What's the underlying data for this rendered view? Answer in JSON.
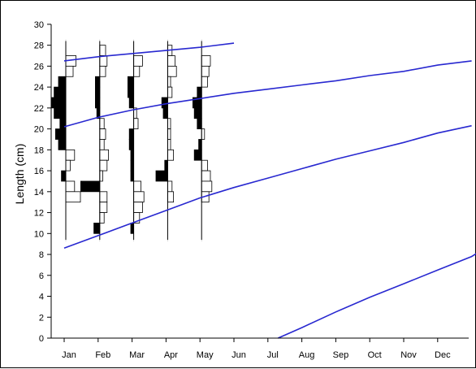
{
  "chart_data": {
    "type": "line",
    "subtype": "length-frequency with growth curves",
    "title": "",
    "xlabel": "",
    "ylabel": "Length (cm)",
    "ylim": [
      0,
      30
    ],
    "y_ticks": [
      0,
      2,
      4,
      6,
      8,
      10,
      12,
      14,
      16,
      18,
      20,
      22,
      24,
      26,
      28,
      30
    ],
    "x_categories": [
      "Jan",
      "Feb",
      "Mar",
      "Apr",
      "May",
      "Jun",
      "Jul",
      "Aug",
      "Sep",
      "Oct",
      "Nov",
      "Dec"
    ],
    "grid": false,
    "colors": {
      "growth_curve": "#2828d0",
      "positive_bar": "#000000",
      "negative_bar": "#ffffff",
      "sample_line": "#000000"
    },
    "growth_curves": [
      {
        "points": [
          [
            0,
            26.5
          ],
          [
            1,
            26.9
          ],
          [
            2,
            27.2
          ],
          [
            3,
            27.5
          ],
          [
            4,
            27.8
          ],
          [
            5,
            28.2
          ]
        ]
      },
      {
        "points": [
          [
            0,
            20.2
          ],
          [
            1,
            21.1
          ],
          [
            2,
            21.8
          ],
          [
            3,
            22.4
          ],
          [
            4,
            22.9
          ],
          [
            5,
            23.4
          ],
          [
            6,
            23.8
          ],
          [
            7,
            24.2
          ],
          [
            8,
            24.6
          ],
          [
            9,
            25.1
          ],
          [
            10,
            25.5
          ],
          [
            11,
            26.1
          ],
          [
            12,
            26.5
          ]
        ]
      },
      {
        "points": [
          [
            0,
            8.6
          ],
          [
            1,
            9.8
          ],
          [
            2,
            11.0
          ],
          [
            3,
            12.2
          ],
          [
            4,
            13.4
          ],
          [
            5,
            14.4
          ],
          [
            6,
            15.3
          ],
          [
            7,
            16.2
          ],
          [
            8,
            17.1
          ],
          [
            9,
            17.9
          ],
          [
            10,
            18.7
          ],
          [
            11,
            19.6
          ],
          [
            12,
            20.3
          ]
        ]
      },
      {
        "points": [
          [
            6.3,
            0
          ],
          [
            7,
            1.0
          ],
          [
            8,
            2.5
          ],
          [
            9,
            3.9
          ],
          [
            10,
            5.2
          ],
          [
            11,
            6.5
          ],
          [
            12,
            7.8
          ],
          [
            12.4,
            8.6
          ]
        ]
      }
    ],
    "samples": [
      {
        "month": "Jan",
        "line_range": [
          9.4,
          28.4
        ],
        "bars": [
          {
            "y": 26.5,
            "v": 0.7
          },
          {
            "y": 25.5,
            "v": 0.5
          },
          {
            "y": 24.5,
            "v": -0.5
          },
          {
            "y": 23.5,
            "v": -0.8
          },
          {
            "y": 22.5,
            "v": -1.0
          },
          {
            "y": 21.5,
            "v": -0.8
          },
          {
            "y": 20.5,
            "v": -0.4
          },
          {
            "y": 19.5,
            "v": -0.7
          },
          {
            "y": 18.5,
            "v": -0.5
          },
          {
            "y": 17.5,
            "v": 0.6
          },
          {
            "y": 16.5,
            "v": 0.3
          },
          {
            "y": 15.5,
            "v": -0.3
          },
          {
            "y": 14.5,
            "v": 0.6
          },
          {
            "y": 13.5,
            "v": 1.0
          }
        ]
      },
      {
        "month": "Feb",
        "line_range": [
          9.4,
          28.4
        ],
        "bars": [
          {
            "y": 27.5,
            "v": 0.4
          },
          {
            "y": 26.5,
            "v": 0.5
          },
          {
            "y": 25.5,
            "v": 0.4
          },
          {
            "y": 24.5,
            "v": -0.3
          },
          {
            "y": 23.5,
            "v": -0.3
          },
          {
            "y": 22.5,
            "v": -0.3
          },
          {
            "y": 21.5,
            "v": -0.2
          },
          {
            "y": 20.5,
            "v": 0.3
          },
          {
            "y": 19.5,
            "v": 0.4
          },
          {
            "y": 18.5,
            "v": 0.3
          },
          {
            "y": 17.5,
            "v": 0.6
          },
          {
            "y": 16.5,
            "v": 0.5
          },
          {
            "y": 15.5,
            "v": 0.2
          },
          {
            "y": 14.5,
            "v": -1.3
          },
          {
            "y": 13.5,
            "v": 0.5
          },
          {
            "y": 12.5,
            "v": 0.5
          },
          {
            "y": 11.5,
            "v": 0.3
          },
          {
            "y": 10.5,
            "v": -0.4
          }
        ]
      },
      {
        "month": "Mar",
        "line_range": [
          9.4,
          28.4
        ],
        "bars": [
          {
            "y": 26.5,
            "v": 0.6
          },
          {
            "y": 25.5,
            "v": 0.4
          },
          {
            "y": 24.5,
            "v": -0.4
          },
          {
            "y": 23.5,
            "v": -0.4
          },
          {
            "y": 22.5,
            "v": -0.3
          },
          {
            "y": 21.5,
            "v": 0.2
          },
          {
            "y": 20.5,
            "v": 0.3
          },
          {
            "y": 19.5,
            "v": -0.3
          },
          {
            "y": 18.5,
            "v": -0.3
          },
          {
            "y": 17.5,
            "v": -0.2
          },
          {
            "y": 16.5,
            "v": -0.2
          },
          {
            "y": 15.5,
            "v": -0.2
          },
          {
            "y": 14.5,
            "v": 0.5
          },
          {
            "y": 13.5,
            "v": 0.7
          },
          {
            "y": 12.5,
            "v": 0.6
          },
          {
            "y": 11.5,
            "v": 0.4
          },
          {
            "y": 10.5,
            "v": -0.2
          }
        ]
      },
      {
        "month": "Apr",
        "line_range": [
          9.4,
          28.4
        ],
        "bars": [
          {
            "y": 27.5,
            "v": 0.3
          },
          {
            "y": 26.5,
            "v": 0.5
          },
          {
            "y": 25.5,
            "v": 0.6
          },
          {
            "y": 24.5,
            "v": 0.2
          },
          {
            "y": 23.5,
            "v": 0.3
          },
          {
            "y": 22.5,
            "v": -0.4
          },
          {
            "y": 21.5,
            "v": -0.3
          },
          {
            "y": 20.5,
            "v": 0.2
          },
          {
            "y": 19.5,
            "v": 0.2
          },
          {
            "y": 18.5,
            "v": 0.2
          },
          {
            "y": 17.5,
            "v": 0.4
          },
          {
            "y": 16.5,
            "v": -0.2
          },
          {
            "y": 15.5,
            "v": -0.8
          },
          {
            "y": 14.5,
            "v": 0.3
          },
          {
            "y": 13.5,
            "v": 0.4
          }
        ]
      },
      {
        "month": "May",
        "line_range": [
          9.4,
          28.4
        ],
        "bars": [
          {
            "y": 26.5,
            "v": 0.6
          },
          {
            "y": 25.5,
            "v": 0.5
          },
          {
            "y": 24.5,
            "v": 0.4
          },
          {
            "y": 23.5,
            "v": -0.3
          },
          {
            "y": 22.5,
            "v": -0.6
          },
          {
            "y": 21.5,
            "v": -0.5
          },
          {
            "y": 20.5,
            "v": -0.3
          },
          {
            "y": 19.5,
            "v": 0.2
          },
          {
            "y": 18.5,
            "v": -0.2
          },
          {
            "y": 17.5,
            "v": -0.5
          },
          {
            "y": 16.5,
            "v": 0.4
          },
          {
            "y": 15.5,
            "v": 0.6
          },
          {
            "y": 14.5,
            "v": 0.7
          },
          {
            "y": 13.5,
            "v": 0.5
          }
        ]
      }
    ]
  }
}
